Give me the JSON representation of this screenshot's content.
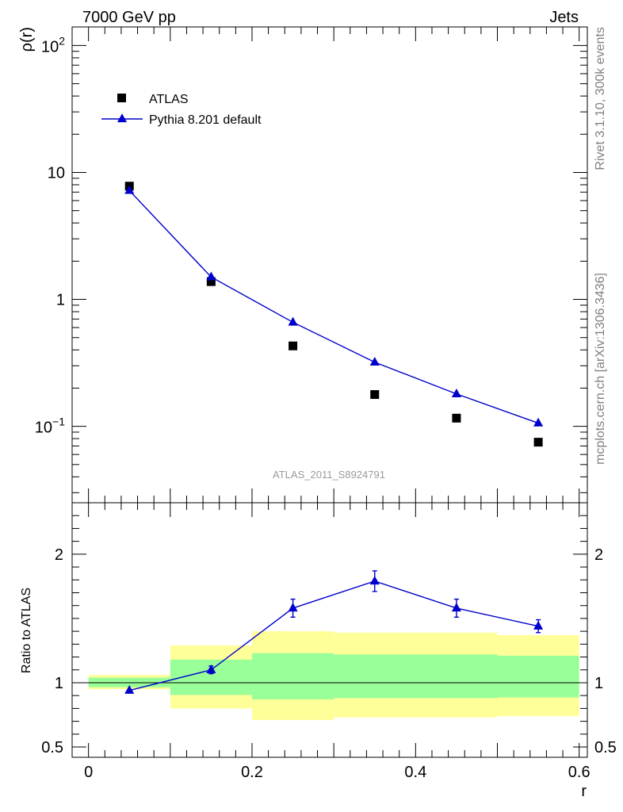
{
  "header": {
    "left": "7000 GeV pp",
    "right": "Jets"
  },
  "side_text": {
    "upper": "Rivet 3.1.10,  300k events",
    "lower": "mcplots.cern.ch [arXiv:1306.3436]"
  },
  "watermark": "ATLAS_2011_S8924791",
  "colors": {
    "mc": "#0000cc",
    "data": "#000000",
    "band_outer": "#ffff99",
    "band_inner": "#99ff99"
  },
  "chart_data": [
    {
      "type": "scatter",
      "ylabel": "ρ(r)",
      "log_y": true,
      "ylim": [
        0.025,
        140
      ],
      "xlim": [
        -0.02,
        0.61
      ],
      "y_ticks": [
        {
          "value": 100,
          "base": "10",
          "exp": "2"
        },
        {
          "value": 10,
          "label": "10"
        },
        {
          "value": 1,
          "label": "1"
        },
        {
          "value": 0.1,
          "base": "10",
          "exp": "−1"
        }
      ],
      "legend": {
        "position": "top-left"
      },
      "series": [
        {
          "name": "ATLAS",
          "style": "square-marker",
          "points": [
            [
              0.05,
              7.8
            ],
            [
              0.15,
              1.38
            ],
            [
              0.25,
              0.43
            ],
            [
              0.35,
              0.178
            ],
            [
              0.45,
              0.116
            ],
            [
              0.55,
              0.075
            ]
          ]
        },
        {
          "name": "Pythia 8.201 default",
          "style": "line-triangle",
          "points": [
            [
              0.05,
              7.2
            ],
            [
              0.15,
              1.5
            ],
            [
              0.25,
              0.66
            ],
            [
              0.35,
              0.32
            ],
            [
              0.45,
              0.18
            ],
            [
              0.55,
              0.106
            ]
          ]
        }
      ]
    },
    {
      "type": "line",
      "ylabel": "Ratio to ATLAS",
      "xlabel": "r",
      "ylim": [
        0.42,
        2.4
      ],
      "xlim": [
        -0.02,
        0.61
      ],
      "x_ticks": [
        "0",
        "0.2",
        "0.4",
        "0.6"
      ],
      "x_tick_values": [
        0,
        0.2,
        0.4,
        0.6
      ],
      "y_ticks": [
        "0.5",
        "1",
        "2"
      ],
      "y_tick_values": [
        0.5,
        1,
        2
      ],
      "reference_line": 1,
      "bands": [
        {
          "x0": 0.0,
          "x1": 0.1,
          "outer": [
            0.95,
            1.06
          ],
          "inner": [
            0.965,
            1.04
          ]
        },
        {
          "x0": 0.1,
          "x1": 0.2,
          "outer": [
            0.8,
            1.29
          ],
          "inner": [
            0.905,
            1.18
          ]
        },
        {
          "x0": 0.2,
          "x1": 0.3,
          "outer": [
            0.71,
            1.4
          ],
          "inner": [
            0.87,
            1.23
          ]
        },
        {
          "x0": 0.3,
          "x1": 0.5,
          "outer": [
            0.73,
            1.39
          ],
          "inner": [
            0.88,
            1.22
          ]
        },
        {
          "x0": 0.5,
          "x1": 0.6,
          "outer": [
            0.74,
            1.37
          ],
          "inner": [
            0.885,
            1.21
          ]
        }
      ],
      "series": [
        {
          "name": "Pythia 8.201 default",
          "points": [
            {
              "x": 0.05,
              "y": 0.94,
              "err": 0.0
            },
            {
              "x": 0.15,
              "y": 1.1,
              "err": 0.03
            },
            {
              "x": 0.25,
              "y": 1.58,
              "err": 0.07
            },
            {
              "x": 0.35,
              "y": 1.79,
              "err": 0.08
            },
            {
              "x": 0.45,
              "y": 1.58,
              "err": 0.07
            },
            {
              "x": 0.55,
              "y": 1.44,
              "err": 0.05
            }
          ]
        }
      ]
    }
  ]
}
